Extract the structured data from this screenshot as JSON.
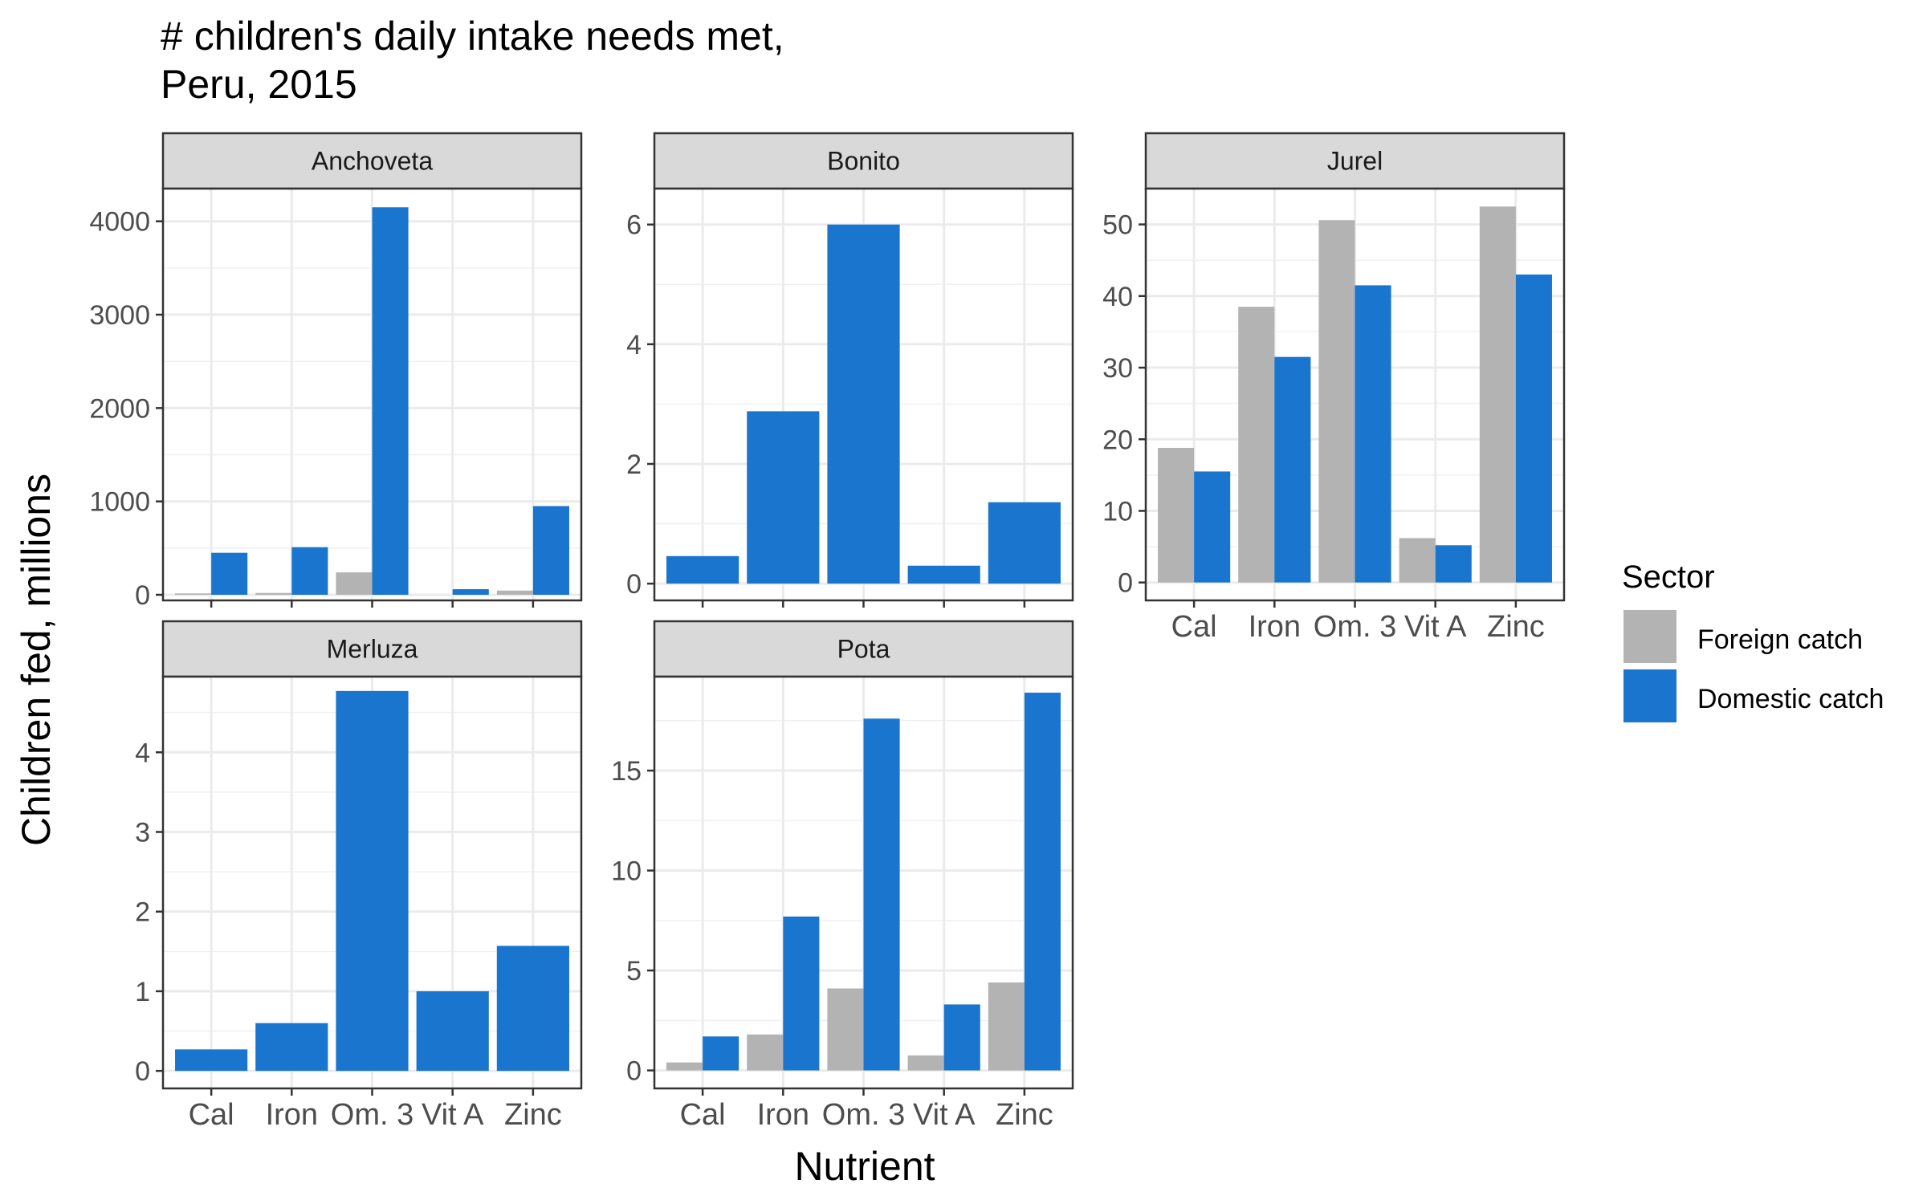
{
  "chart_data": {
    "type": "bar",
    "title_lines": [
      "# children's daily intake needs met,",
      "Peru, 2015"
    ],
    "xlabel": "Nutrient",
    "ylabel": "Children fed, millions",
    "categories": [
      "Cal",
      "Iron",
      "Om. 3",
      "Vit A",
      "Zinc"
    ],
    "legend": {
      "title": "Sector",
      "position": "right",
      "items": [
        {
          "name": "Foreign catch",
          "color": "#B3B3B3"
        },
        {
          "name": "Domestic catch",
          "color": "#1A75CF"
        }
      ]
    },
    "grid": true,
    "panels": [
      {
        "name": "Anchoveta",
        "ylim": [
          -60,
          4350
        ],
        "yticks": [
          0,
          1000,
          2000,
          3000,
          4000
        ],
        "series": [
          {
            "name": "Foreign catch",
            "values": [
              15,
              20,
              240,
              0,
              45
            ]
          },
          {
            "name": "Domestic catch",
            "values": [
              450,
              510,
              4150,
              60,
              950
            ]
          }
        ]
      },
      {
        "name": "Bonito",
        "ylim": [
          -0.28,
          6.6
        ],
        "yticks": [
          0,
          2,
          4,
          6
        ],
        "series": [
          {
            "name": "Foreign catch",
            "values": [
              0,
              0,
              0,
              0,
              0
            ]
          },
          {
            "name": "Domestic catch",
            "values": [
              0.46,
              2.88,
              6.0,
              0.3,
              1.36
            ]
          }
        ]
      },
      {
        "name": "Jurel",
        "ylim": [
          -2.5,
          55
        ],
        "yticks": [
          0,
          10,
          20,
          30,
          40,
          50
        ],
        "series": [
          {
            "name": "Foreign catch",
            "values": [
              18.8,
              38.5,
              50.6,
              6.2,
              52.5
            ]
          },
          {
            "name": "Domestic catch",
            "values": [
              15.5,
              31.5,
              41.5,
              5.2,
              43.0
            ]
          }
        ]
      },
      {
        "name": "Merluza",
        "ylim": [
          -0.22,
          4.95
        ],
        "yticks": [
          0,
          1,
          2,
          3,
          4
        ],
        "series": [
          {
            "name": "Foreign catch",
            "values": [
              0,
              0,
              0,
              0,
              0
            ]
          },
          {
            "name": "Domestic catch",
            "values": [
              0.27,
              0.6,
              4.77,
              1.0,
              1.57
            ]
          }
        ]
      },
      {
        "name": "Pota",
        "ylim": [
          -0.9,
          19.7
        ],
        "yticks": [
          0,
          5,
          10,
          15
        ],
        "series": [
          {
            "name": "Foreign catch",
            "values": [
              0.4,
              1.8,
              4.1,
              0.75,
              4.4
            ]
          },
          {
            "name": "Domestic catch",
            "values": [
              1.7,
              7.7,
              17.6,
              3.3,
              18.9
            ]
          }
        ]
      }
    ]
  }
}
